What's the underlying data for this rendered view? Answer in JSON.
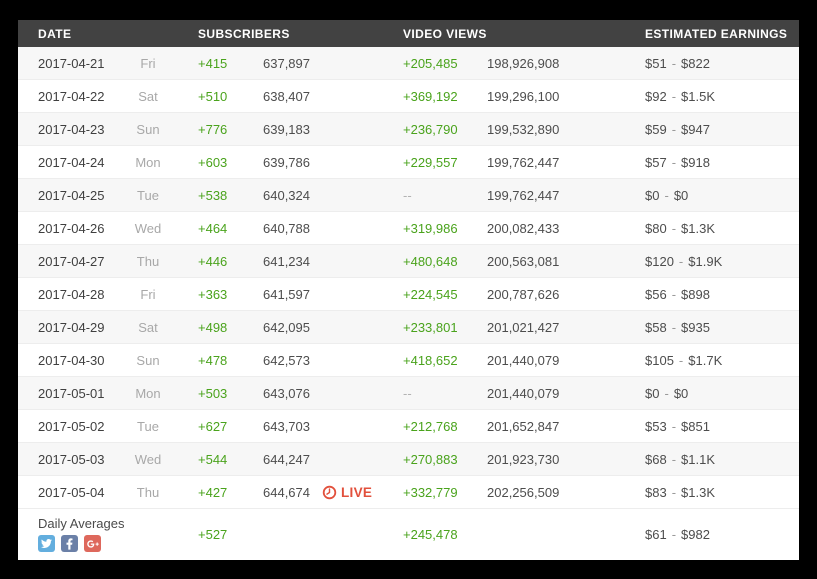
{
  "colors": {
    "green": "#4aa31c",
    "red": "#e2503c",
    "header_bg": "#424242",
    "twitter_blue": "#63aede",
    "facebook_blue": "#6b80a7",
    "google_plus_red": "#de685c"
  },
  "header": {
    "date": "DATE",
    "subscribers": "SUBSCRIBERS",
    "video_views": "VIDEO VIEWS",
    "estimated_earnings": "ESTIMATED EARNINGS"
  },
  "live_badge": {
    "label": "LIVE"
  },
  "table": {
    "earnings_separator": "-",
    "rows": [
      {
        "date": "2017-04-21",
        "day": "Fri",
        "subscriber_change": "+415",
        "subscribers_total": "637,897",
        "video_views_change": "+205,485",
        "video_views_total": "198,926,908",
        "earnings_low": "$51",
        "earnings_high": "$822",
        "live": false
      },
      {
        "date": "2017-04-22",
        "day": "Sat",
        "subscriber_change": "+510",
        "subscribers_total": "638,407",
        "video_views_change": "+369,192",
        "video_views_total": "199,296,100",
        "earnings_low": "$92",
        "earnings_high": "$1.5K",
        "live": false
      },
      {
        "date": "2017-04-23",
        "day": "Sun",
        "subscriber_change": "+776",
        "subscribers_total": "639,183",
        "video_views_change": "+236,790",
        "video_views_total": "199,532,890",
        "earnings_low": "$59",
        "earnings_high": "$947",
        "live": false
      },
      {
        "date": "2017-04-24",
        "day": "Mon",
        "subscriber_change": "+603",
        "subscribers_total": "639,786",
        "video_views_change": "+229,557",
        "video_views_total": "199,762,447",
        "earnings_low": "$57",
        "earnings_high": "$918",
        "live": false
      },
      {
        "date": "2017-04-25",
        "day": "Tue",
        "subscriber_change": "+538",
        "subscribers_total": "640,324",
        "video_views_change": "--",
        "video_views_total": "199,762,447",
        "earnings_low": "$0",
        "earnings_high": "$0",
        "live": false
      },
      {
        "date": "2017-04-26",
        "day": "Wed",
        "subscriber_change": "+464",
        "subscribers_total": "640,788",
        "video_views_change": "+319,986",
        "video_views_total": "200,082,433",
        "earnings_low": "$80",
        "earnings_high": "$1.3K",
        "live": false
      },
      {
        "date": "2017-04-27",
        "day": "Thu",
        "subscriber_change": "+446",
        "subscribers_total": "641,234",
        "video_views_change": "+480,648",
        "video_views_total": "200,563,081",
        "earnings_low": "$120",
        "earnings_high": "$1.9K",
        "live": false
      },
      {
        "date": "2017-04-28",
        "day": "Fri",
        "subscriber_change": "+363",
        "subscribers_total": "641,597",
        "video_views_change": "+224,545",
        "video_views_total": "200,787,626",
        "earnings_low": "$56",
        "earnings_high": "$898",
        "live": false
      },
      {
        "date": "2017-04-29",
        "day": "Sat",
        "subscriber_change": "+498",
        "subscribers_total": "642,095",
        "video_views_change": "+233,801",
        "video_views_total": "201,021,427",
        "earnings_low": "$58",
        "earnings_high": "$935",
        "live": false
      },
      {
        "date": "2017-04-30",
        "day": "Sun",
        "subscriber_change": "+478",
        "subscribers_total": "642,573",
        "video_views_change": "+418,652",
        "video_views_total": "201,440,079",
        "earnings_low": "$105",
        "earnings_high": "$1.7K",
        "live": false
      },
      {
        "date": "2017-05-01",
        "day": "Mon",
        "subscriber_change": "+503",
        "subscribers_total": "643,076",
        "video_views_change": "--",
        "video_views_total": "201,440,079",
        "earnings_low": "$0",
        "earnings_high": "$0",
        "live": false
      },
      {
        "date": "2017-05-02",
        "day": "Tue",
        "subscriber_change": "+627",
        "subscribers_total": "643,703",
        "video_views_change": "+212,768",
        "video_views_total": "201,652,847",
        "earnings_low": "$53",
        "earnings_high": "$851",
        "live": false
      },
      {
        "date": "2017-05-03",
        "day": "Wed",
        "subscriber_change": "+544",
        "subscribers_total": "644,247",
        "video_views_change": "+270,883",
        "video_views_total": "201,923,730",
        "earnings_low": "$68",
        "earnings_high": "$1.1K",
        "live": false
      },
      {
        "date": "2017-05-04",
        "day": "Thu",
        "subscriber_change": "+427",
        "subscribers_total": "644,674",
        "video_views_change": "+332,779",
        "video_views_total": "202,256,509",
        "earnings_low": "$83",
        "earnings_high": "$1.3K",
        "live": true
      }
    ]
  },
  "footer": {
    "label": "Daily Averages",
    "subscriber_change_avg": "+527",
    "video_views_change_avg": "+245,478",
    "earnings_low_avg": "$61",
    "earnings_high_avg": "$982",
    "social_icons": [
      "twitter-icon",
      "facebook-icon",
      "google-plus-icon"
    ]
  }
}
